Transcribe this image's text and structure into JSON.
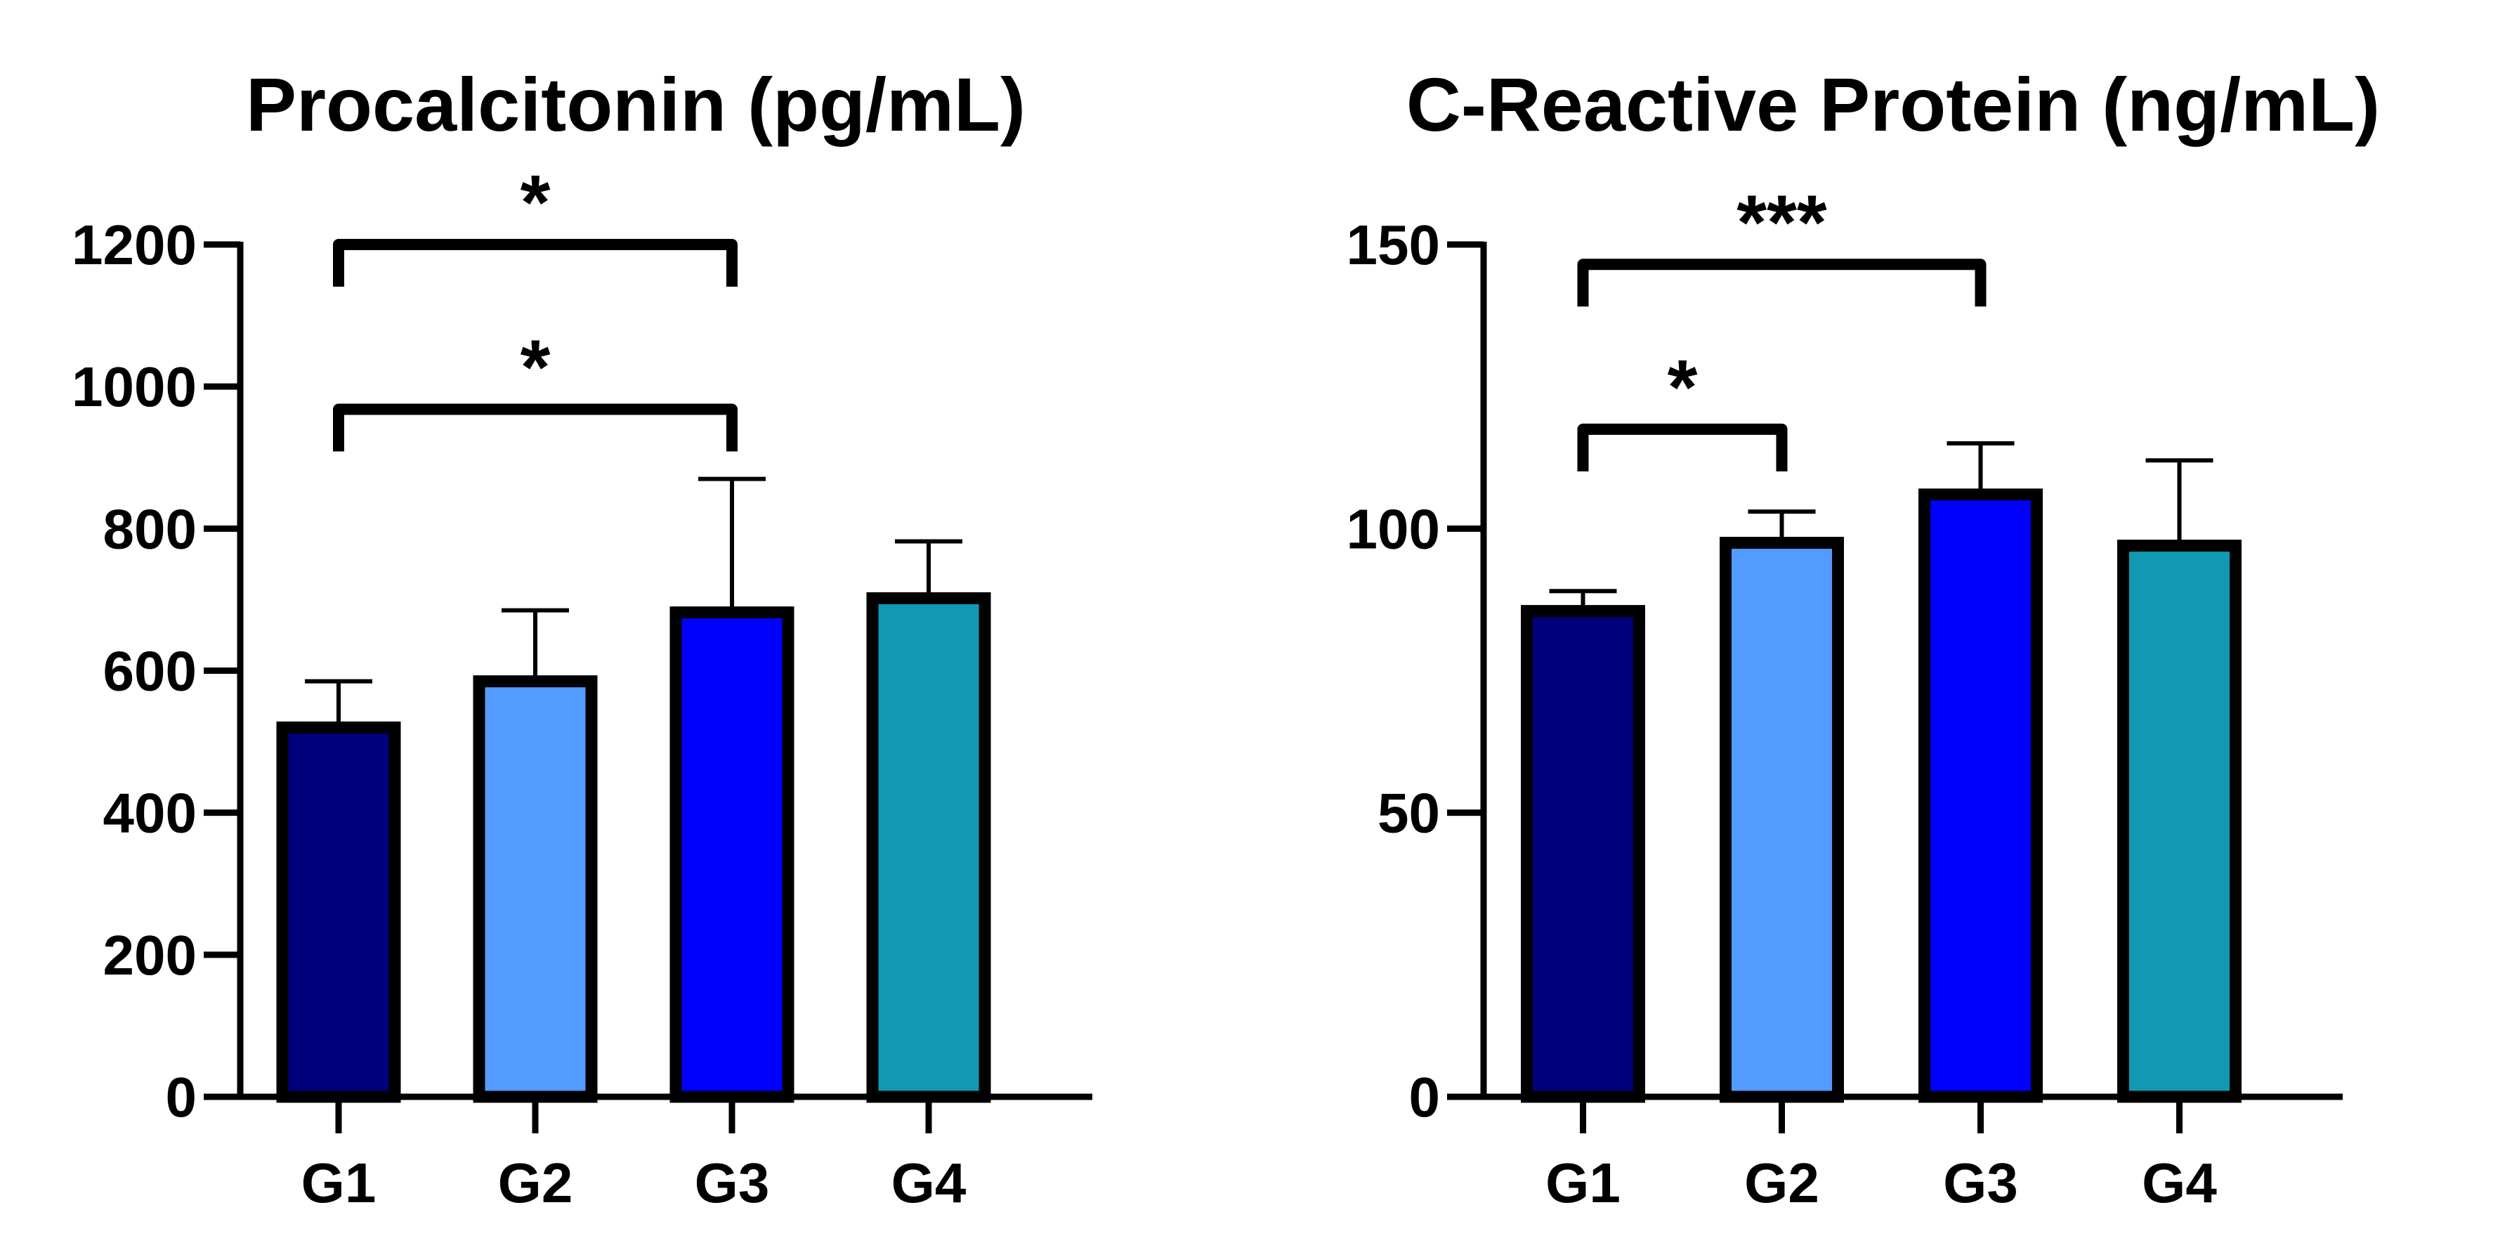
{
  "chart_data": [
    {
      "type": "bar",
      "title": "Procalcitonin (pg/mL)",
      "xlabel": "",
      "ylabel": "",
      "categories": [
        "G1",
        "G2",
        "G3",
        "G4"
      ],
      "values": [
        520,
        585,
        682,
        702
      ],
      "error_up": [
        585,
        685,
        870,
        782
      ],
      "colors": [
        "#00007A",
        "#529CFF",
        "#0000FF",
        "#1199B3"
      ],
      "ylim": [
        0,
        1200
      ],
      "yticks": [
        0,
        200,
        400,
        600,
        800,
        1000,
        1200
      ],
      "ytick_labels": [
        "0",
        "200",
        "400",
        "600",
        "800",
        "1000",
        "1200"
      ],
      "grid": false,
      "brackets": [
        {
          "from": 0,
          "to": 2,
          "y": 1200,
          "label": "*"
        },
        {
          "from": 0,
          "to": 2,
          "y": 968,
          "label": "*"
        }
      ]
    },
    {
      "type": "bar",
      "title": "C-Reactive Protein (ng/mL)",
      "xlabel": "",
      "ylabel": "",
      "categories": [
        "G1",
        "G2",
        "G3",
        "G4"
      ],
      "values": [
        85.5,
        97.5,
        106,
        97
      ],
      "error_up": [
        89,
        103,
        115,
        112
      ],
      "colors": [
        "#00007A",
        "#529CFF",
        "#0000FF",
        "#1199B3"
      ],
      "ylim": [
        0,
        150
      ],
      "yticks": [
        0,
        50,
        100,
        150
      ],
      "ytick_labels": [
        "0",
        "50",
        "100",
        "150"
      ],
      "grid": false,
      "brackets": [
        {
          "from": 0,
          "to": 2,
          "y": 146.5,
          "label": "***"
        },
        {
          "from": 0,
          "to": 1,
          "y": 117.5,
          "label": "*"
        }
      ]
    }
  ]
}
